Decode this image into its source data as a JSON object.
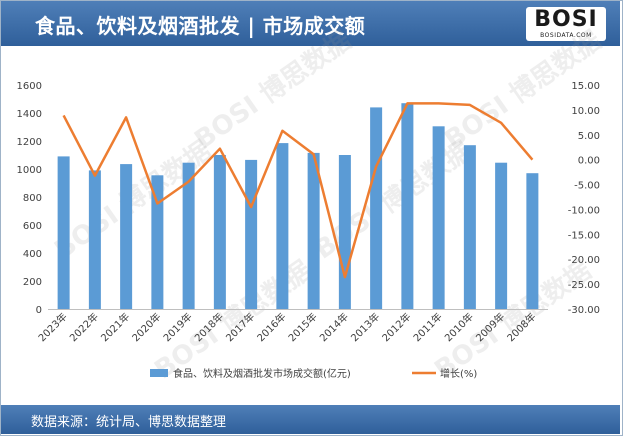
{
  "header": {
    "title": "食品、饮料及烟酒批发 | 市场成交额"
  },
  "logo": {
    "brand": "BOSI",
    "sub": "BOSIDATA.COM"
  },
  "footer": {
    "source": "数据来源：统计局、博思数据整理"
  },
  "colors": {
    "bar": "#5b9bd5",
    "line": "#ed7d31",
    "header": "#3a6aa5"
  },
  "chart_data": {
    "type": "bar",
    "categories": [
      "2023年",
      "2022年",
      "2021年",
      "2020年",
      "2019年",
      "2018年",
      "2017年",
      "2016年",
      "2015年",
      "2014年",
      "2013年",
      "2012年",
      "2011年",
      "2010年",
      "2009年",
      "2008年"
    ],
    "series": [
      {
        "name": "食品、饮料及烟酒批发市场成交额(亿元)",
        "type": "bar",
        "axis": "left",
        "values": [
          1090,
          990,
          1035,
          955,
          1045,
          1100,
          1065,
          1185,
          1115,
          1100,
          1440,
          1470,
          1305,
          1170,
          1045,
          970
        ]
      },
      {
        "name": "增长(%)",
        "type": "line",
        "axis": "right",
        "values": [
          8.9,
          -3.2,
          8.5,
          -8.8,
          -4.4,
          2.2,
          -9.5,
          5.8,
          1.1,
          -23.6,
          -1.4,
          11.3,
          11.3,
          11.0,
          7.4,
          0.0
        ]
      }
    ],
    "y_left": {
      "ylim": [
        0,
        1600
      ],
      "ticks": [
        "0",
        "200",
        "400",
        "600",
        "800",
        "1000",
        "1200",
        "1400",
        "1600"
      ]
    },
    "y_right": {
      "ylim": [
        -30,
        15
      ],
      "ticks": [
        "-30.00",
        "-25.00",
        "-20.00",
        "-15.00",
        "-10.00",
        "-5.00",
        "0.00",
        "5.00",
        "10.00",
        "15.00"
      ]
    },
    "legend": [
      "食品、饮料及烟酒批发市场成交额(亿元)",
      "增长(%)"
    ],
    "grid": false
  }
}
